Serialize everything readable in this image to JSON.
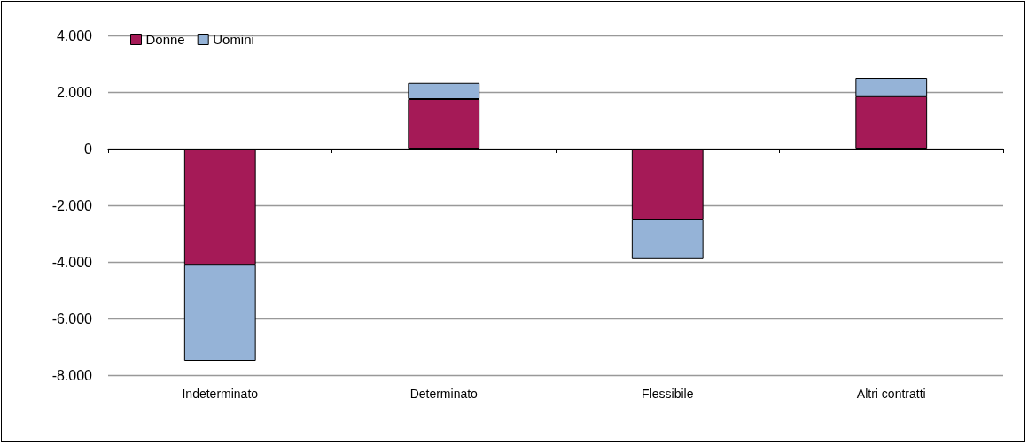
{
  "chart_data": {
    "type": "bar",
    "stacked": true,
    "categories": [
      "Indeterminato",
      "Determinato",
      "Flessibile",
      "Altri contratti"
    ],
    "series": [
      {
        "name": "Donne",
        "color": "#a51a57",
        "values": [
          -4100,
          1750,
          -2500,
          1850
        ]
      },
      {
        "name": "Uomini",
        "color": "#95b3d7",
        "values": [
          -3400,
          570,
          -1400,
          650
        ]
      }
    ],
    "ylim": [
      -8000,
      4000
    ],
    "yticks": [
      {
        "value": -8000,
        "label": "-8.000"
      },
      {
        "value": -6000,
        "label": "-6.000"
      },
      {
        "value": -4000,
        "label": "-4.000"
      },
      {
        "value": -2000,
        "label": "-2.000"
      },
      0,
      {
        "value": 2000,
        "label": "2.000"
      },
      {
        "value": 4000,
        "label": "4.000"
      }
    ],
    "grid": "y",
    "legend": "top left"
  }
}
